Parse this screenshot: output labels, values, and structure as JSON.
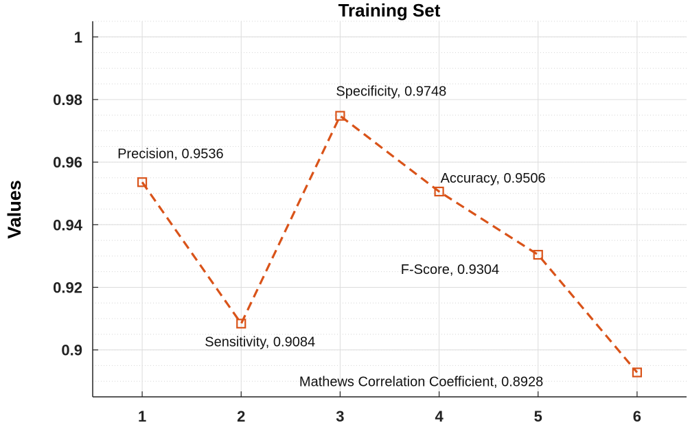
{
  "chart_data": {
    "type": "line",
    "title": "Training Set",
    "xlabel": "",
    "ylabel": "Values",
    "x": [
      1,
      2,
      3,
      4,
      5,
      6
    ],
    "xlim": [
      0.5,
      6.5
    ],
    "ylim": [
      0.885,
      1.005
    ],
    "xticks": [
      1,
      2,
      3,
      4,
      5,
      6
    ],
    "xtick_labels": [
      "1",
      "2",
      "3",
      "4",
      "5",
      "6"
    ],
    "yticks": [
      0.9,
      0.92,
      0.94,
      0.96,
      0.98,
      1
    ],
    "ytick_labels": [
      "0.9",
      "0.92",
      "0.94",
      "0.96",
      "0.98",
      "1"
    ],
    "grid": true,
    "minor_grid": true,
    "series": [
      {
        "name": "Training Set",
        "color": "#d95319",
        "line_style": "dashed",
        "marker": "square",
        "values": [
          0.9536,
          0.9084,
          0.9748,
          0.9506,
          0.9304,
          0.8928
        ]
      }
    ],
    "annotations": [
      "Precision, 0.9536",
      "Sensitivity, 0.9084",
      "Specificity, 0.9748",
      "Accuracy, 0.9506",
      "F-Score, 0.9304",
      "Mathews Correlation Coefficient, 0.8928"
    ]
  }
}
